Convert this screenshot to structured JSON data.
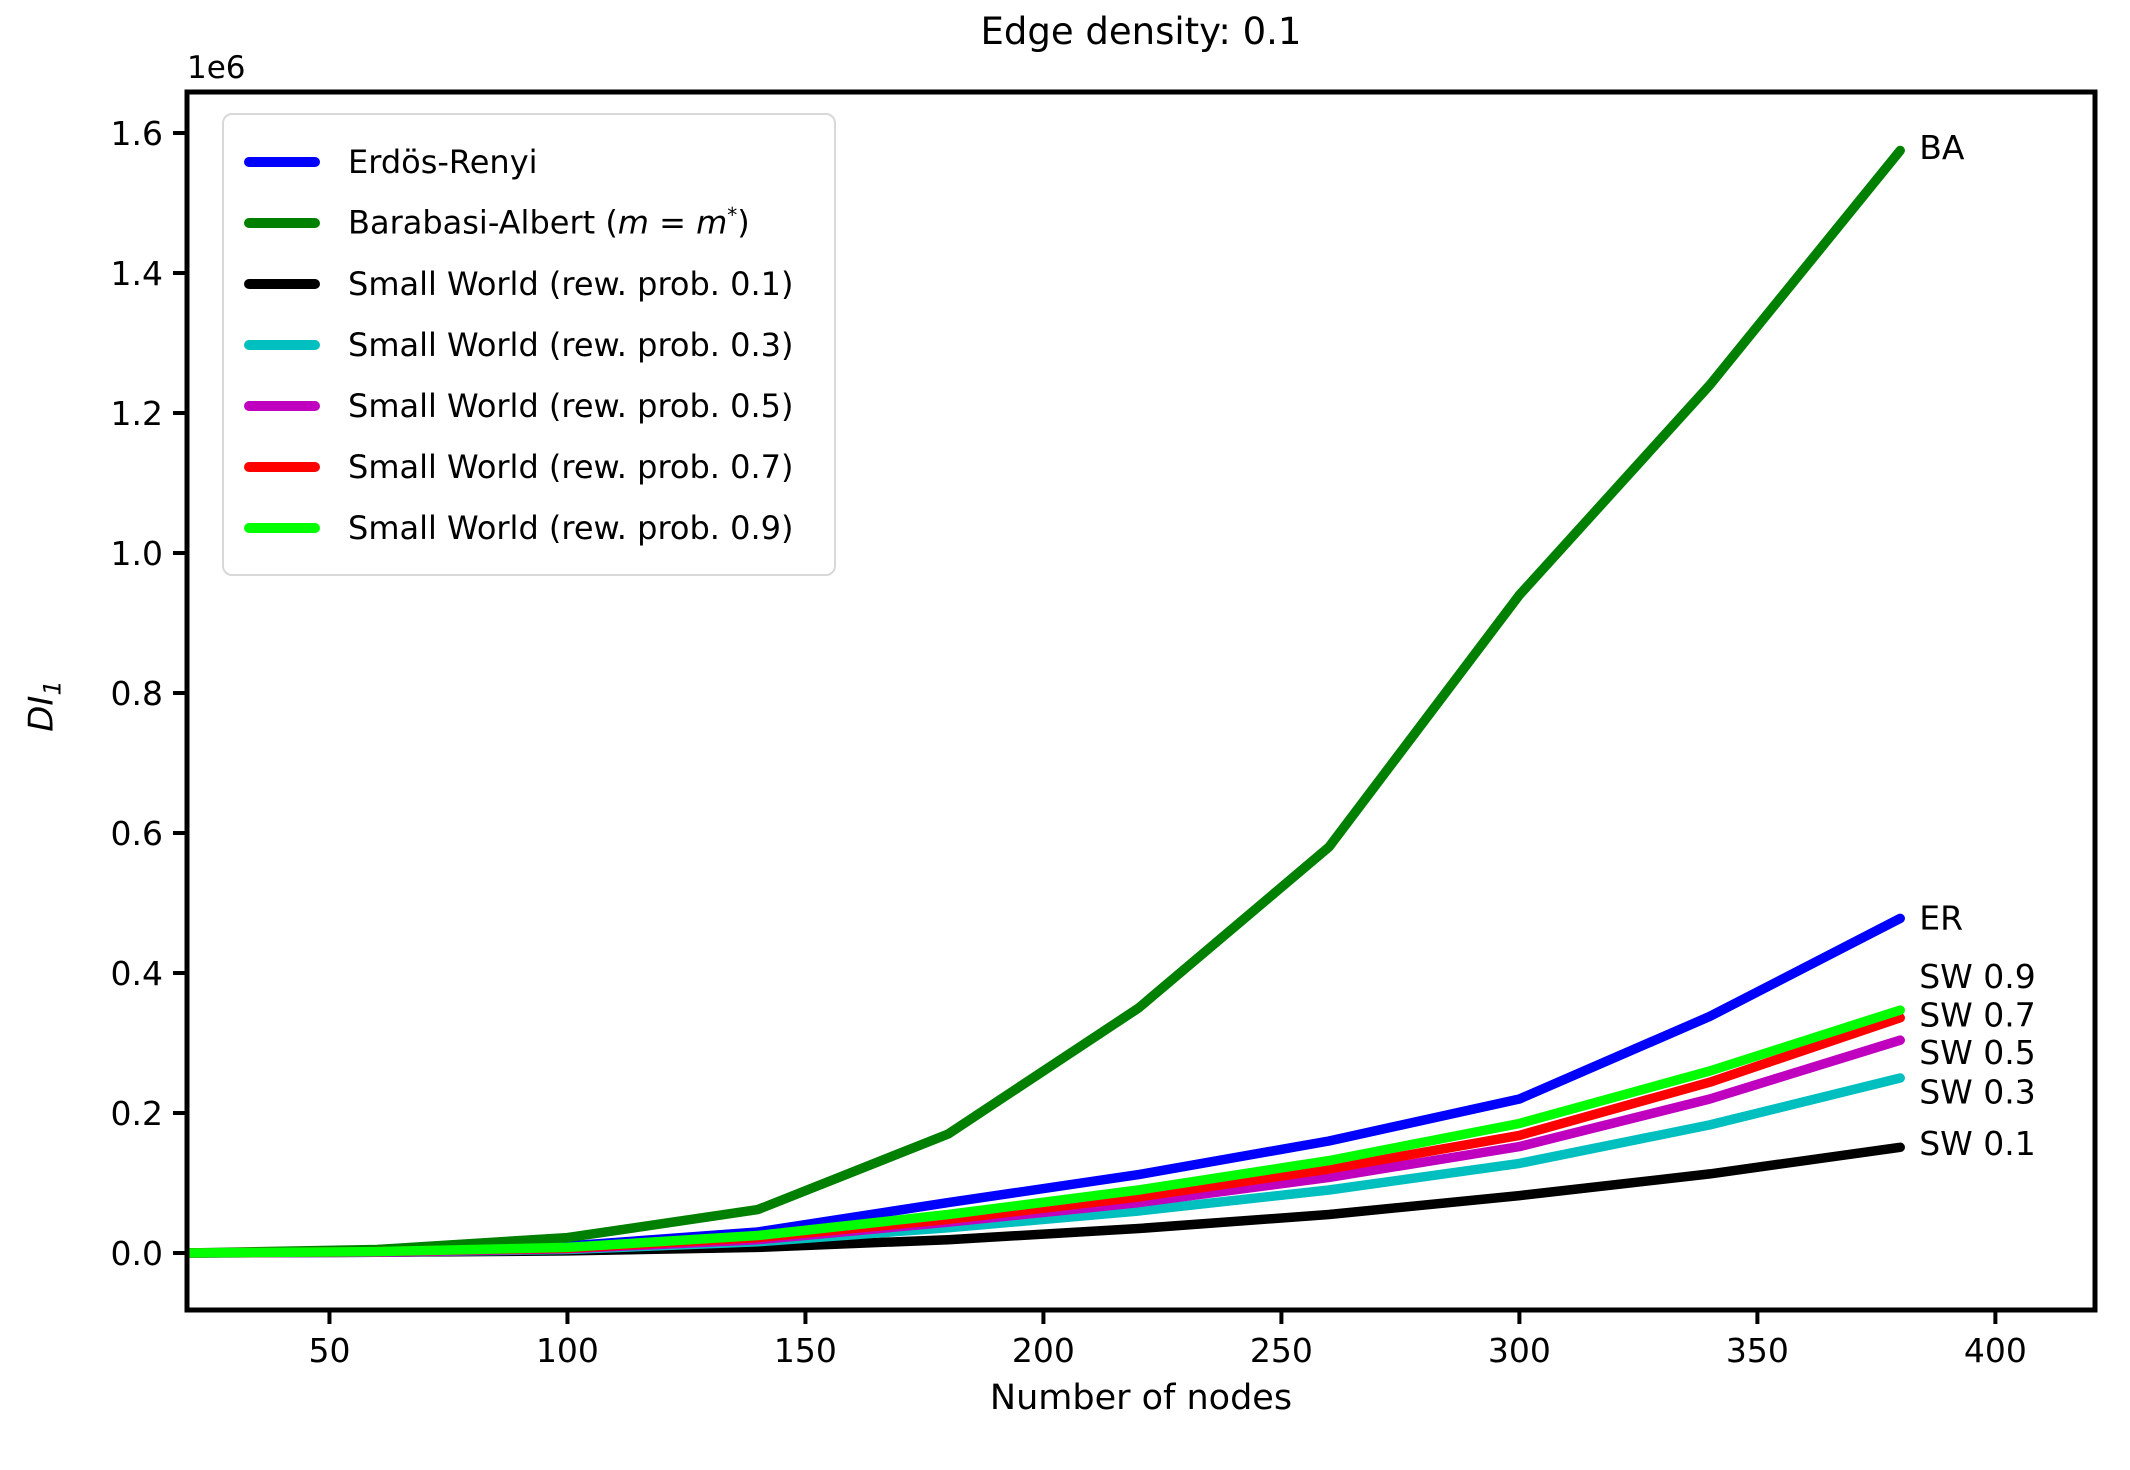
{
  "figure": {
    "title": "Edge density: 0.1",
    "offset_label": "1e6"
  },
  "axes": {
    "xlabel": "Number of nodes",
    "ylabel_base": "DI",
    "ylabel_sub": "1",
    "x_ticks": [
      {
        "value": 50,
        "label": "50"
      },
      {
        "value": 100,
        "label": "100"
      },
      {
        "value": 150,
        "label": "150"
      },
      {
        "value": 200,
        "label": "200"
      },
      {
        "value": 250,
        "label": "250"
      },
      {
        "value": 300,
        "label": "300"
      },
      {
        "value": 350,
        "label": "350"
      },
      {
        "value": 400,
        "label": "400"
      }
    ],
    "y_ticks": [
      {
        "value": 0.0,
        "label": "0.0"
      },
      {
        "value": 0.2,
        "label": "0.2"
      },
      {
        "value": 0.4,
        "label": "0.4"
      },
      {
        "value": 0.6,
        "label": "0.6"
      },
      {
        "value": 0.8,
        "label": "0.8"
      },
      {
        "value": 1.0,
        "label": "1.0"
      },
      {
        "value": 1.2,
        "label": "1.2"
      },
      {
        "value": 1.4,
        "label": "1.4"
      },
      {
        "value": 1.6,
        "label": "1.6"
      }
    ]
  },
  "legend": {
    "items": [
      {
        "label": "Erdös-Renyi",
        "color": "#0000ff"
      },
      {
        "label": "Barabasi-Albert (m = m*)",
        "color": "#008000"
      },
      {
        "label": "Small World (rew. prob. 0.1)",
        "color": "#000000"
      },
      {
        "label": "Small World (rew. prob. 0.3)",
        "color": "#00bfbf"
      },
      {
        "label": "Small World (rew. prob. 0.5)",
        "color": "#bf00bf"
      },
      {
        "label": "Small World (rew. prob. 0.7)",
        "color": "#ff0000"
      },
      {
        "label": "Small World (rew. prob. 0.9)",
        "color": "#00ff00"
      }
    ]
  },
  "chart_data": {
    "type": "line",
    "title": "Edge density: 0.1",
    "xlabel": "Number of nodes",
    "ylabel": "DI_1",
    "values_scale_note": "series values are in units of 1e6 (axis offset label 1e6)",
    "xlim": [
      20,
      421
    ],
    "ylim_1e6": [
      -0.081,
      1.659
    ],
    "grid": false,
    "legend_position": "upper left",
    "x": [
      20,
      60,
      100,
      140,
      180,
      220,
      260,
      300,
      340,
      380
    ],
    "series": [
      {
        "name": "Erdös-Renyi",
        "color": "#0000ff",
        "values": [
          0.0,
          0.002,
          0.01,
          0.03,
          0.072,
          0.112,
          0.16,
          0.22,
          0.338,
          0.478
        ]
      },
      {
        "name": "Barabasi-Albert (m = m*)",
        "color": "#008000",
        "values": [
          0.0,
          0.005,
          0.022,
          0.062,
          0.17,
          0.35,
          0.58,
          0.94,
          1.24,
          1.575
        ]
      },
      {
        "name": "Small World (rew. prob. 0.1)",
        "color": "#000000",
        "values": [
          0.0,
          0.001,
          0.003,
          0.008,
          0.019,
          0.035,
          0.055,
          0.082,
          0.113,
          0.151
        ]
      },
      {
        "name": "Small World (rew. prob. 0.3)",
        "color": "#00bfbf",
        "values": [
          0.0,
          0.001,
          0.005,
          0.016,
          0.036,
          0.06,
          0.09,
          0.128,
          0.183,
          0.25
        ]
      },
      {
        "name": "Small World (rew. prob. 0.5)",
        "color": "#bf00bf",
        "values": [
          0.0,
          0.001,
          0.006,
          0.019,
          0.044,
          0.072,
          0.108,
          0.152,
          0.22,
          0.304
        ]
      },
      {
        "name": "Small World (rew. prob. 0.7)",
        "color": "#ff0000",
        "values": [
          0.0,
          0.002,
          0.007,
          0.022,
          0.048,
          0.08,
          0.12,
          0.168,
          0.244,
          0.336
        ]
      },
      {
        "name": "Small World (rew. prob. 0.9)",
        "color": "#00ff00",
        "values": [
          0.0,
          0.002,
          0.008,
          0.025,
          0.055,
          0.09,
          0.132,
          0.185,
          0.26,
          0.347
        ]
      }
    ],
    "annotations": [
      {
        "label": "BA",
        "x": 384,
        "y_1e6": 1.58
      },
      {
        "label": "ER",
        "x": 384,
        "y_1e6": 0.479
      },
      {
        "label": "SW 0.9",
        "x": 384,
        "y_1e6": 0.396
      },
      {
        "label": "SW 0.7",
        "x": 384,
        "y_1e6": 0.341
      },
      {
        "label": "SW 0.5",
        "x": 384,
        "y_1e6": 0.287
      },
      {
        "label": "SW 0.3",
        "x": 384,
        "y_1e6": 0.231
      },
      {
        "label": "SW 0.1",
        "x": 384,
        "y_1e6": 0.157
      }
    ]
  }
}
